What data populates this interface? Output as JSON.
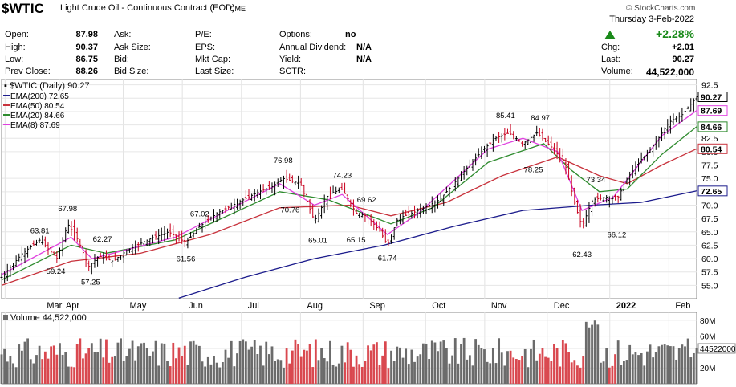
{
  "header": {
    "ticker": "$WTIC",
    "name": "Light Crude Oil - Continuous Contract (EOD)",
    "exchange": "CME",
    "credit": "© StockCharts.com",
    "date": "Thursday  3-Feb-2022",
    "pct_change": "+2.28%",
    "quote_fields": [
      {
        "label": "Open:",
        "value": "87.98"
      },
      {
        "label": "High:",
        "value": "90.37"
      },
      {
        "label": "Low:",
        "value": "86.75"
      },
      {
        "label": "Prev Close:",
        "value": "88.26"
      }
    ],
    "col2_fields": [
      {
        "label": "Ask:",
        "value": ""
      },
      {
        "label": "Ask Size:",
        "value": ""
      },
      {
        "label": "Bid:",
        "value": ""
      },
      {
        "label": "Bid Size:",
        "value": ""
      }
    ],
    "col3_fields": [
      {
        "label": "P/E:",
        "value": ""
      },
      {
        "label": "EPS:",
        "value": ""
      },
      {
        "label": "Mkt Cap:",
        "value": ""
      },
      {
        "label": "Last Size:",
        "value": ""
      }
    ],
    "col4_fields": [
      {
        "label": "Options:",
        "value": "no"
      },
      {
        "label": "Annual Dividend:",
        "value": "N/A"
      },
      {
        "label": "Yield:",
        "value": "N/A"
      },
      {
        "label": "SCTR:",
        "value": ""
      }
    ],
    "right_fields": [
      {
        "label": "Chg:",
        "value": "+2.01"
      },
      {
        "label": "Last:",
        "value": "90.27"
      },
      {
        "label": "Volume:",
        "value": "44,522,000"
      }
    ]
  },
  "chart_data": [
    {
      "type": "line",
      "title": "$WTIC (Daily) 90.27",
      "legend": [
        {
          "label": "EMA(200) 72.65",
          "color": "#1c1c8c"
        },
        {
          "label": "EMA(50) 80.54",
          "color": "#c8323c"
        },
        {
          "label": "EMA(20) 84.66",
          "color": "#2e8b2e"
        },
        {
          "label": "EMA(8) 87.69",
          "color": "#e040e0"
        }
      ],
      "x_labels": [
        "Mar",
        "Apr",
        "May",
        "Jun",
        "Jul",
        "Aug",
        "Sep",
        "Oct",
        "Nov",
        "Dec",
        "2022",
        "Feb"
      ],
      "ylim": [
        52.5,
        93.5
      ],
      "y_ticks": [
        92.5,
        90.0,
        87.5,
        85.0,
        82.5,
        80.0,
        77.5,
        75.0,
        72.5,
        70.0,
        67.5,
        65.0,
        62.5,
        60.0,
        57.5,
        55.0
      ],
      "y_tick_labels": [
        "92.5",
        "90.0",
        "87.5",
        "85.0",
        "82.5",
        "80.0",
        "77.5",
        "75.0",
        "72.5",
        "70.0",
        "67.5",
        "65.0",
        "62.5",
        "60.0",
        "57.5",
        "55.0"
      ],
      "price_tags": [
        {
          "value": 90.27,
          "label": "90.27",
          "color": "#000000"
        },
        {
          "value": 87.69,
          "label": "87.69",
          "color": "#e040e0"
        },
        {
          "value": 84.66,
          "label": "84.66",
          "color": "#2e8b2e"
        },
        {
          "value": 80.54,
          "label": "80.54",
          "color": "#c8323c"
        },
        {
          "value": 72.65,
          "label": "72.65",
          "color": "#1c1c8c"
        }
      ],
      "annotations": [
        {
          "label": "67.98",
          "t": 0.095,
          "value": 67.98
        },
        {
          "label": "63.81",
          "t": 0.055,
          "value": 63.81
        },
        {
          "label": "59.24",
          "t": 0.078,
          "value": 59.24
        },
        {
          "label": "62.27",
          "t": 0.145,
          "value": 62.27
        },
        {
          "label": "57.25",
          "t": 0.128,
          "value": 57.25
        },
        {
          "label": "67.02",
          "t": 0.285,
          "value": 67.02
        },
        {
          "label": "61.56",
          "t": 0.265,
          "value": 61.56
        },
        {
          "label": "76.98",
          "t": 0.405,
          "value": 76.98
        },
        {
          "label": "70.76",
          "t": 0.415,
          "value": 70.76
        },
        {
          "label": "65.01",
          "t": 0.455,
          "value": 65.01
        },
        {
          "label": "74.23",
          "t": 0.49,
          "value": 74.23
        },
        {
          "label": "69.62",
          "t": 0.525,
          "value": 69.62
        },
        {
          "label": "65.15",
          "t": 0.51,
          "value": 65.15
        },
        {
          "label": "61.74",
          "t": 0.555,
          "value": 61.74
        },
        {
          "label": "85.41",
          "t": 0.725,
          "value": 85.41
        },
        {
          "label": "84.97",
          "t": 0.775,
          "value": 84.97
        },
        {
          "label": "78.25",
          "t": 0.765,
          "value": 78.25
        },
        {
          "label": "73.34",
          "t": 0.855,
          "value": 73.34
        },
        {
          "label": "62.43",
          "t": 0.835,
          "value": 62.43
        },
        {
          "label": "66.12",
          "t": 0.885,
          "value": 66.12
        }
      ],
      "price_path": [
        [
          0.0,
          56.5
        ],
        [
          0.03,
          61.0
        ],
        [
          0.055,
          63.5
        ],
        [
          0.08,
          60.0
        ],
        [
          0.095,
          66.5
        ],
        [
          0.11,
          63.5
        ],
        [
          0.125,
          58.5
        ],
        [
          0.14,
          60.5
        ],
        [
          0.16,
          59.5
        ],
        [
          0.18,
          61.5
        ],
        [
          0.21,
          63.5
        ],
        [
          0.24,
          65.0
        ],
        [
          0.265,
          63.0
        ],
        [
          0.285,
          66.0
        ],
        [
          0.31,
          68.5
        ],
        [
          0.34,
          70.5
        ],
        [
          0.37,
          72.5
        ],
        [
          0.39,
          73.5
        ],
        [
          0.405,
          75.0
        ],
        [
          0.43,
          74.0
        ],
        [
          0.45,
          67.0
        ],
        [
          0.47,
          72.0
        ],
        [
          0.49,
          73.0
        ],
        [
          0.51,
          68.5
        ],
        [
          0.525,
          68.0
        ],
        [
          0.545,
          65.0
        ],
        [
          0.555,
          62.5
        ],
        [
          0.57,
          67.5
        ],
        [
          0.6,
          69.0
        ],
        [
          0.63,
          71.0
        ],
        [
          0.66,
          75.5
        ],
        [
          0.69,
          80.0
        ],
        [
          0.71,
          82.5
        ],
        [
          0.73,
          83.5
        ],
        [
          0.75,
          81.5
        ],
        [
          0.77,
          83.5
        ],
        [
          0.79,
          81.0
        ],
        [
          0.81,
          78.0
        ],
        [
          0.825,
          70.0
        ],
        [
          0.835,
          66.0
        ],
        [
          0.85,
          71.0
        ],
        [
          0.87,
          71.5
        ],
        [
          0.885,
          71.0
        ],
        [
          0.9,
          75.0
        ],
        [
          0.92,
          78.5
        ],
        [
          0.94,
          81.5
        ],
        [
          0.96,
          85.5
        ],
        [
          0.98,
          87.0
        ],
        [
          1.0,
          90.27
        ]
      ],
      "ema_paths": {
        "ema8": [
          [
            0.0,
            57.0
          ],
          [
            0.1,
            64.0
          ],
          [
            0.13,
            60.0
          ],
          [
            0.25,
            64.0
          ],
          [
            0.4,
            74.0
          ],
          [
            0.45,
            70.0
          ],
          [
            0.49,
            72.0
          ],
          [
            0.555,
            64.5
          ],
          [
            0.6,
            68.5
          ],
          [
            0.7,
            80.5
          ],
          [
            0.75,
            82.5
          ],
          [
            0.8,
            80.0
          ],
          [
            0.835,
            69.0
          ],
          [
            0.88,
            71.5
          ],
          [
            0.95,
            83.0
          ],
          [
            1.0,
            87.69
          ]
        ],
        "ema20": [
          [
            0.0,
            56.0
          ],
          [
            0.1,
            62.5
          ],
          [
            0.15,
            61.0
          ],
          [
            0.25,
            63.5
          ],
          [
            0.4,
            72.5
          ],
          [
            0.47,
            71.0
          ],
          [
            0.56,
            66.5
          ],
          [
            0.62,
            69.5
          ],
          [
            0.7,
            78.0
          ],
          [
            0.78,
            81.5
          ],
          [
            0.82,
            76.5
          ],
          [
            0.86,
            72.5
          ],
          [
            0.9,
            73.0
          ],
          [
            0.95,
            79.5
          ],
          [
            1.0,
            84.66
          ]
        ],
        "ema50": [
          [
            0.0,
            55.0
          ],
          [
            0.1,
            59.5
          ],
          [
            0.2,
            61.0
          ],
          [
            0.3,
            64.5
          ],
          [
            0.4,
            69.5
          ],
          [
            0.5,
            70.0
          ],
          [
            0.56,
            68.0
          ],
          [
            0.64,
            70.5
          ],
          [
            0.72,
            75.5
          ],
          [
            0.8,
            79.0
          ],
          [
            0.86,
            75.5
          ],
          [
            0.9,
            74.0
          ],
          [
            0.95,
            77.5
          ],
          [
            1.0,
            80.54
          ]
        ],
        "ema200": [
          [
            0.255,
            52.6
          ],
          [
            0.35,
            56.5
          ],
          [
            0.45,
            60.0
          ],
          [
            0.55,
            62.5
          ],
          [
            0.65,
            66.0
          ],
          [
            0.75,
            69.0
          ],
          [
            0.85,
            70.0
          ],
          [
            0.92,
            70.5
          ],
          [
            1.0,
            72.65
          ]
        ]
      }
    },
    {
      "type": "bar",
      "title": "Volume 44,522,000",
      "ylim": [
        0,
        90
      ],
      "y_ticks": [
        80,
        60,
        44.522,
        20
      ],
      "y_tick_labels": [
        "80M",
        "60M",
        "44522000",
        "20M"
      ],
      "last_value_millions": 44.522
    }
  ]
}
